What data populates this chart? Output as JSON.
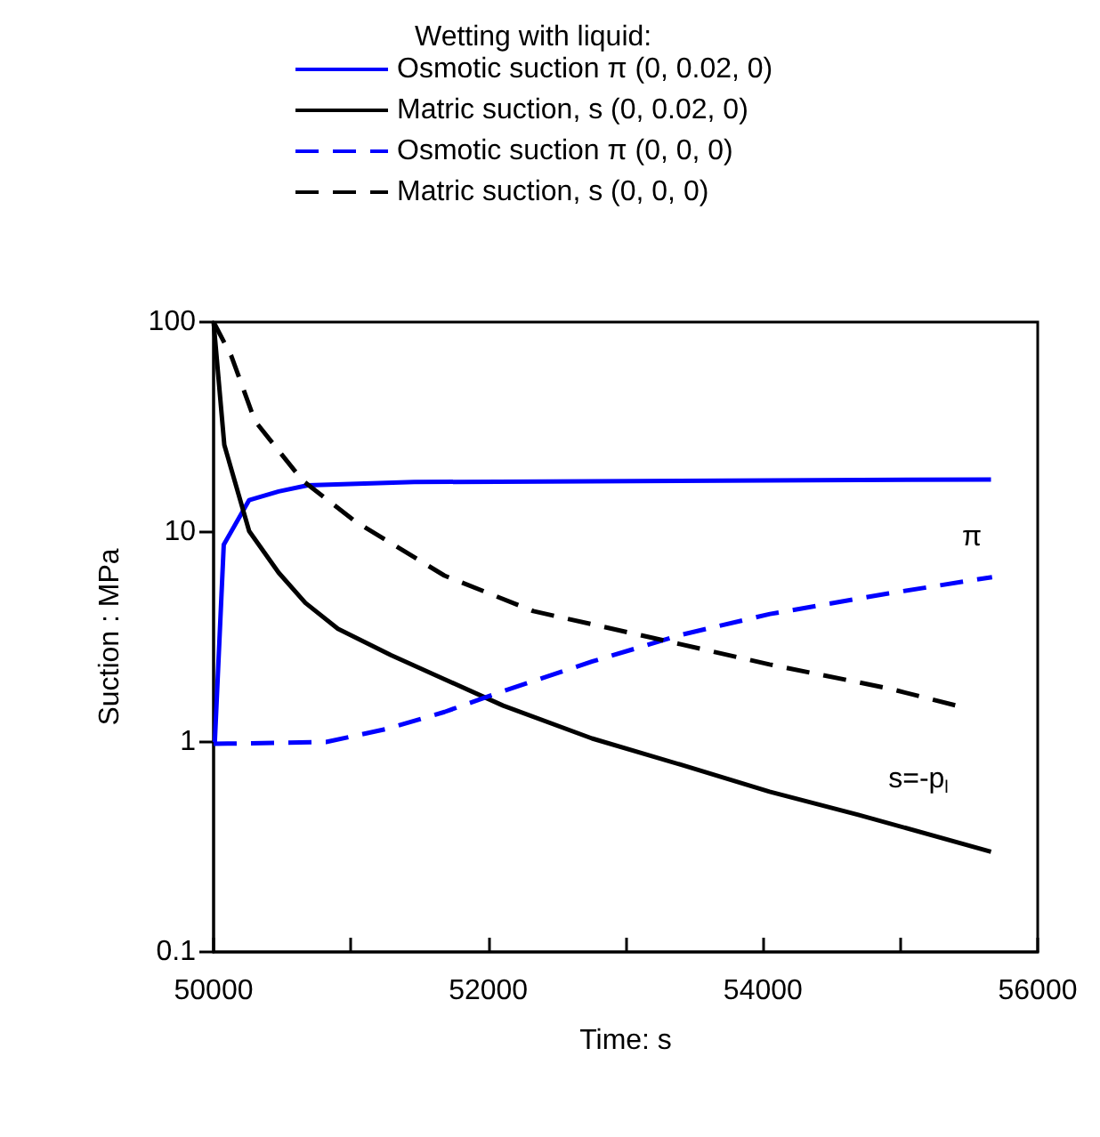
{
  "chart_data": {
    "type": "line",
    "xlabel": "Time: s",
    "ylabel": "Suction : MPa",
    "legend_title": "Wetting with liquid:",
    "log": "y",
    "xlim": [
      50000,
      56000
    ],
    "ylim": [
      0.1,
      100
    ],
    "xticks": [
      50000,
      {
        "value": 51000,
        "label": null
      },
      52000,
      {
        "value": 53000,
        "label": null
      },
      54000,
      {
        "value": 55000,
        "label": null
      },
      56000
    ],
    "yticks": [
      0.1,
      1,
      10,
      100
    ],
    "grid": false,
    "legend": "top",
    "marker": "none",
    "series": [
      {
        "name": "Osmotic suction π (0, 0.02, 0)",
        "color": "#0000ff",
        "line_style": "solid",
        "x": [
          50009,
          50074,
          50259,
          50474,
          50685,
          51460,
          55660
        ],
        "values": [
          1,
          8.7,
          14.2,
          15.6,
          16.7,
          17.3,
          17.8
        ]
      },
      {
        "name": "Matric suction, s (0, 0.02, 0)",
        "color": "#000000",
        "line_style": "solid",
        "x": [
          50000,
          50078,
          50259,
          50474,
          50668,
          50905,
          51293,
          51681,
          52108,
          52755,
          53400,
          54048,
          54694,
          55660
        ],
        "values": [
          100,
          26,
          10.1,
          6.4,
          4.6,
          3.46,
          2.59,
          1.99,
          1.49,
          1.04,
          0.78,
          0.58,
          0.45,
          0.3
        ]
      },
      {
        "name": "Osmotic suction π (0, 0, 0)",
        "color": "#0000ff",
        "line_style": "dashed",
        "x": [
          50000,
          50819,
          51250,
          51681,
          52112,
          52758,
          53405,
          54051,
          54914,
          55668
        ],
        "values": [
          0.98,
          1,
          1.15,
          1.39,
          1.75,
          2.42,
          3.24,
          4.07,
          5.1,
          6.1
        ]
      },
      {
        "name": "Matric suction, s (0, 0, 0)",
        "color": "#000000",
        "line_style": "dashed",
        "x": [
          50000,
          50129,
          50301,
          50647,
          51034,
          51681,
          52328,
          53190,
          54048,
          54914,
          55409
        ],
        "values": [
          100,
          69,
          33.8,
          17.6,
          11.2,
          6.2,
          4.2,
          3.14,
          2.34,
          1.8,
          1.49
        ]
      }
    ],
    "annotations": [
      "π",
      "s=-p$_{l}$"
    ]
  }
}
